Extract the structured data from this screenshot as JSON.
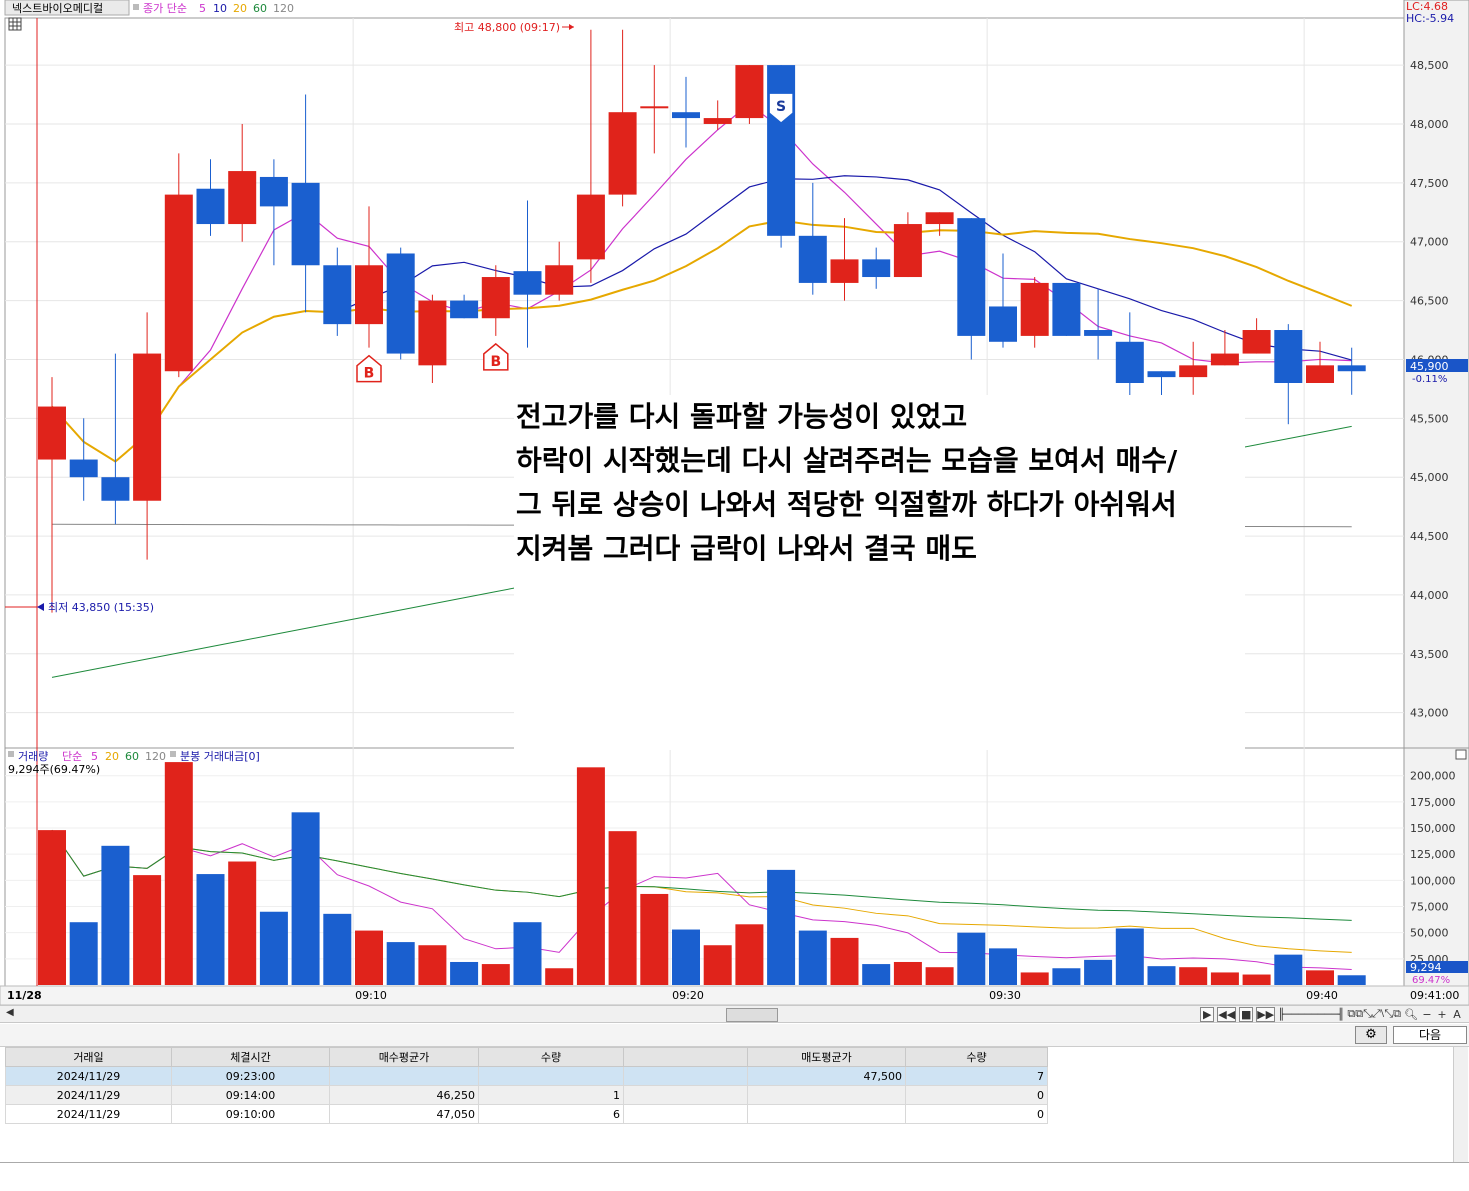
{
  "header": {
    "stock_name": "넥스트바이오메디컬",
    "ma_label": "종가 단순",
    "ma_periods": [
      "5",
      "10",
      "20",
      "60",
      "120"
    ],
    "ma_colors": [
      "#cc33cc",
      "#1a1aaa",
      "#e6a800",
      "#1e8a3c",
      "#888888"
    ]
  },
  "right_info": {
    "lc": "LC:4.68",
    "hc": "HC:-5.94"
  },
  "price_panel": {
    "y_ticks": [
      "48,500",
      "48,000",
      "47,500",
      "47,000",
      "46,500",
      "46,000",
      "45,500",
      "45,000",
      "44,500",
      "44,000",
      "43,500",
      "43,000"
    ],
    "current_price": "45,900",
    "current_change": "-0.11%",
    "high_annotation": "최고 48,800 (09:17)",
    "low_annotation": "최저 43,850 (15:35)"
  },
  "signals": {
    "buy_label": "B",
    "sell_label": "S"
  },
  "volume_panel": {
    "legend_label": "거래량",
    "ma_label": "단순",
    "ma_periods": [
      "5",
      "20",
      "60",
      "120"
    ],
    "amount_label": "분봉 거래대금[0]",
    "current_info": "9,294주(69.47%)",
    "y_ticks": [
      "200,000",
      "175,000",
      "150,000",
      "125,000",
      "100,000",
      "75,000",
      "50,000",
      "25,000"
    ],
    "current_value": "9,294",
    "current_pct": "69.47%"
  },
  "x_axis": {
    "date_label": "11/28",
    "ticks": [
      "09:10",
      "09:20",
      "09:30",
      "09:40"
    ],
    "right_time": "09:41:00"
  },
  "annotation": {
    "lines": [
      "전고가를 다시 돌파할 가능성이 있었고",
      "하락이 시작했는데 다시 살려주려는 모습을 보여서 매수/",
      "그 뒤로 상승이 나와서 적당한 익절할까 하다가 아쉬워서",
      "지켜봄 그러다 급락이 나와서 결국 매도"
    ]
  },
  "toolbar": {
    "next_label": "다음"
  },
  "trades": {
    "headers": [
      "거래일",
      "체결시간",
      "매수평균가",
      "수량",
      "",
      "매도평균가",
      "수량"
    ],
    "rows": [
      [
        "2024/11/29",
        "09:23:00",
        "",
        "",
        "",
        "47,500",
        "7"
      ],
      [
        "2024/11/29",
        "09:14:00",
        "46,250",
        "1",
        "",
        "",
        "0"
      ],
      [
        "2024/11/29",
        "09:10:00",
        "47,050",
        "6",
        "",
        "",
        "0"
      ]
    ]
  },
  "chart_data": {
    "type": "candlestick",
    "candles": [
      {
        "t": "15:35",
        "o": 45150,
        "h": 45850,
        "l": 43850,
        "c": 45600,
        "v": 148000
      },
      {
        "t": "09:01",
        "o": 45150,
        "h": 45500,
        "l": 44800,
        "c": 45000,
        "v": 60000
      },
      {
        "t": "09:02",
        "o": 45000,
        "h": 46050,
        "l": 44600,
        "c": 44800,
        "v": 133000
      },
      {
        "t": "09:03",
        "o": 44800,
        "h": 46400,
        "l": 44300,
        "c": 46050,
        "v": 105000
      },
      {
        "t": "09:04",
        "o": 45900,
        "h": 47750,
        "l": 45850,
        "c": 47400,
        "v": 213000
      },
      {
        "t": "09:05",
        "o": 47450,
        "h": 47700,
        "l": 47050,
        "c": 47150,
        "v": 106000
      },
      {
        "t": "09:06",
        "o": 47150,
        "h": 48000,
        "l": 47000,
        "c": 47600,
        "v": 118000
      },
      {
        "t": "09:07",
        "o": 47550,
        "h": 47700,
        "l": 46800,
        "c": 47300,
        "v": 70000
      },
      {
        "t": "09:08",
        "o": 47500,
        "h": 48250,
        "l": 46400,
        "c": 46800,
        "v": 165000
      },
      {
        "t": "09:09",
        "o": 46800,
        "h": 46950,
        "l": 46200,
        "c": 46300,
        "v": 68000
      },
      {
        "t": "09:10",
        "o": 46300,
        "h": 47300,
        "l": 46100,
        "c": 46800,
        "v": 52000
      },
      {
        "t": "09:11",
        "o": 46900,
        "h": 46950,
        "l": 46000,
        "c": 46050,
        "v": 41000
      },
      {
        "t": "09:12",
        "o": 45950,
        "h": 46550,
        "l": 45800,
        "c": 46500,
        "v": 38000
      },
      {
        "t": "09:13",
        "o": 46500,
        "h": 46550,
        "l": 46350,
        "c": 46350,
        "v": 22000
      },
      {
        "t": "09:14",
        "o": 46350,
        "h": 46800,
        "l": 46200,
        "c": 46700,
        "v": 20000
      },
      {
        "t": "09:15",
        "o": 46750,
        "h": 47350,
        "l": 46100,
        "c": 46550,
        "v": 60000
      },
      {
        "t": "09:16",
        "o": 46550,
        "h": 47000,
        "l": 46500,
        "c": 46800,
        "v": 16000
      },
      {
        "t": "09:17",
        "o": 46850,
        "h": 48800,
        "l": 46650,
        "c": 47400,
        "v": 208000
      },
      {
        "t": "09:18",
        "o": 47400,
        "h": 48800,
        "l": 47300,
        "c": 48100,
        "v": 147000
      },
      {
        "t": "09:19",
        "o": 48150,
        "h": 48500,
        "l": 47750,
        "c": 48150,
        "v": 87000
      },
      {
        "t": "09:20",
        "o": 48100,
        "h": 48400,
        "l": 47800,
        "c": 48050,
        "v": 53000
      },
      {
        "t": "09:21",
        "o": 48000,
        "h": 48200,
        "l": 47950,
        "c": 48050,
        "v": 38000
      },
      {
        "t": "09:22",
        "o": 48050,
        "h": 48500,
        "l": 48000,
        "c": 48500,
        "v": 58000
      },
      {
        "t": "09:23",
        "o": 48500,
        "h": 48500,
        "l": 46950,
        "c": 47050,
        "v": 110000
      },
      {
        "t": "09:24",
        "o": 47050,
        "h": 47500,
        "l": 46550,
        "c": 46650,
        "v": 52000
      },
      {
        "t": "09:25",
        "o": 46650,
        "h": 47200,
        "l": 46500,
        "c": 46850,
        "v": 45000
      },
      {
        "t": "09:26",
        "o": 46850,
        "h": 46950,
        "l": 46600,
        "c": 46700,
        "v": 20000
      },
      {
        "t": "09:27",
        "o": 46700,
        "h": 47250,
        "l": 46700,
        "c": 47150,
        "v": 22000
      },
      {
        "t": "09:28",
        "o": 47150,
        "h": 47250,
        "l": 47050,
        "c": 47250,
        "v": 17000
      },
      {
        "t": "09:29",
        "o": 47200,
        "h": 47200,
        "l": 46000,
        "c": 46200,
        "v": 50000
      },
      {
        "t": "09:30",
        "o": 46450,
        "h": 46900,
        "l": 46100,
        "c": 46150,
        "v": 35000
      },
      {
        "t": "09:31",
        "o": 46200,
        "h": 46700,
        "l": 46100,
        "c": 46650,
        "v": 12000
      },
      {
        "t": "09:32",
        "o": 46650,
        "h": 46650,
        "l": 46200,
        "c": 46200,
        "v": 16000
      },
      {
        "t": "09:33",
        "o": 46250,
        "h": 46600,
        "l": 46000,
        "c": 46200,
        "v": 24000
      },
      {
        "t": "09:34",
        "o": 46150,
        "h": 46400,
        "l": 45650,
        "c": 45800,
        "v": 54000
      },
      {
        "t": "09:35",
        "o": 45900,
        "h": 45900,
        "l": 45650,
        "c": 45850,
        "v": 18000
      },
      {
        "t": "09:36",
        "o": 45850,
        "h": 46150,
        "l": 45700,
        "c": 45950,
        "v": 17000
      },
      {
        "t": "09:37",
        "o": 45950,
        "h": 46250,
        "l": 45950,
        "c": 46050,
        "v": 12000
      },
      {
        "t": "09:38",
        "o": 46050,
        "h": 46350,
        "l": 46050,
        "c": 46250,
        "v": 10000
      },
      {
        "t": "09:39",
        "o": 46250,
        "h": 46300,
        "l": 45450,
        "c": 45800,
        "v": 29000
      },
      {
        "t": "09:40",
        "o": 45800,
        "h": 46150,
        "l": 45800,
        "c": 45950,
        "v": 14000
      },
      {
        "t": "09:41",
        "o": 45950,
        "h": 46100,
        "l": 45700,
        "c": 45900,
        "v": 9294
      }
    ],
    "buy_signals": [
      "09:10",
      "09:14"
    ],
    "sell_signals": [
      "09:23"
    ],
    "price_range": [
      42700,
      48900
    ],
    "volume_range": [
      0,
      215000
    ]
  }
}
